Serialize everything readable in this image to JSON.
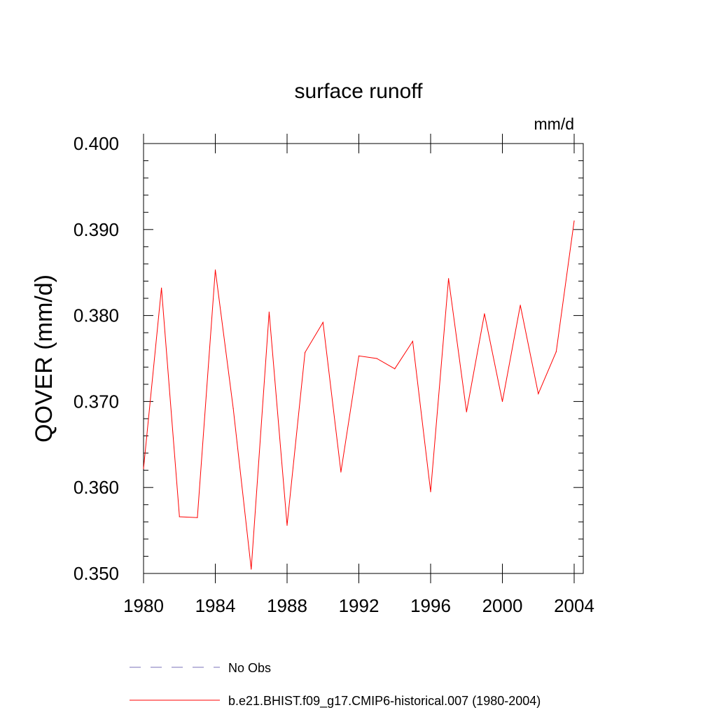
{
  "chart_data": {
    "type": "line",
    "title": "surface runoff",
    "units_label": "mm/d",
    "ylabel": "QOVER  (mm/d)",
    "xlabel": "",
    "xlim": [
      1980,
      2004
    ],
    "ylim": [
      0.35,
      0.4
    ],
    "x_ticks": [
      1980,
      1984,
      1988,
      1992,
      1996,
      2000,
      2004
    ],
    "x_tick_labels": [
      "1980",
      "1984",
      "1988",
      "1992",
      "1996",
      "2000",
      "2004"
    ],
    "y_ticks": [
      0.35,
      0.36,
      0.37,
      0.38,
      0.39,
      0.4
    ],
    "y_tick_labels": [
      "0.350",
      "0.360",
      "0.370",
      "0.380",
      "0.390",
      "0.400"
    ],
    "grid": false,
    "series": [
      {
        "name": "b.e21.BHIST.f09_g17.CMIP6-historical.007 (1980-2004)",
        "color": "#ff0000",
        "style": "solid",
        "x": [
          1980,
          1981,
          1982,
          1983,
          1984,
          1985,
          1986,
          1987,
          1988,
          1989,
          1990,
          1991,
          1992,
          1993,
          1994,
          1995,
          1996,
          1997,
          1998,
          1999,
          2000,
          2001,
          2002,
          2003,
          2004
        ],
        "values": [
          0.3622,
          0.3832,
          0.3566,
          0.3565,
          0.3853,
          0.3692,
          0.3505,
          0.3804,
          0.3556,
          0.3757,
          0.3792,
          0.3618,
          0.3753,
          0.375,
          0.3738,
          0.377,
          0.3595,
          0.3843,
          0.3688,
          0.3802,
          0.37,
          0.3812,
          0.3709,
          0.3758,
          0.391
        ]
      }
    ],
    "legend": [
      {
        "label": "No Obs",
        "color": "#7a70b8",
        "style": "dashed"
      },
      {
        "label": "b.e21.BHIST.f09_g17.CMIP6-historical.007 (1980-2004)",
        "color": "#ff0000",
        "style": "solid"
      }
    ],
    "legend_position": "bottom"
  }
}
